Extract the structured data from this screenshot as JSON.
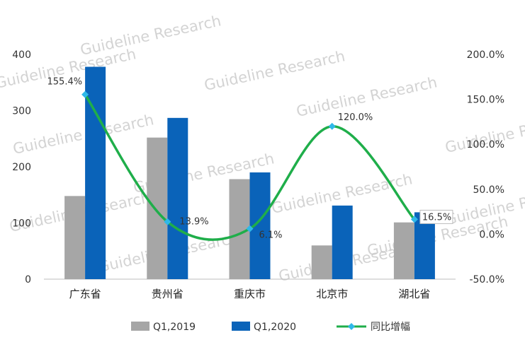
{
  "chart_data": {
    "type": "bar",
    "categories": [
      "广东省",
      "贵州省",
      "重庆市",
      "北京市",
      "湖北省"
    ],
    "series": [
      {
        "name": "Q1,2019",
        "type": "bar",
        "axis": "left",
        "color": "#a6a6a6",
        "values": [
          148,
          252,
          178,
          60,
          101
        ]
      },
      {
        "name": "Q1,2020",
        "type": "bar",
        "axis": "left",
        "color": "#0a63b9",
        "values": [
          378,
          287,
          190,
          131,
          119
        ]
      },
      {
        "name": "同比增幅",
        "type": "line",
        "axis": "right",
        "color": "#1fae4a",
        "marker_color": "#2fb8e8",
        "smooth": true,
        "values": [
          155.4,
          13.9,
          6.1,
          120.0,
          16.5
        ],
        "labels": [
          "155.4%",
          "13.9%",
          "6.1%",
          "120.0%",
          "16.5%"
        ]
      }
    ],
    "y_left": {
      "min": 0,
      "max": 400,
      "ticks": [
        "0",
        "100",
        "200",
        "300",
        "400"
      ]
    },
    "y_right": {
      "min": -50,
      "max": 200,
      "ticks": [
        "-50.0%",
        "0.0%",
        "50.0%",
        "100.0%",
        "150.0%",
        "200.0%"
      ]
    },
    "grid": false,
    "legend": "bottom",
    "watermark": "Guideline Research"
  }
}
